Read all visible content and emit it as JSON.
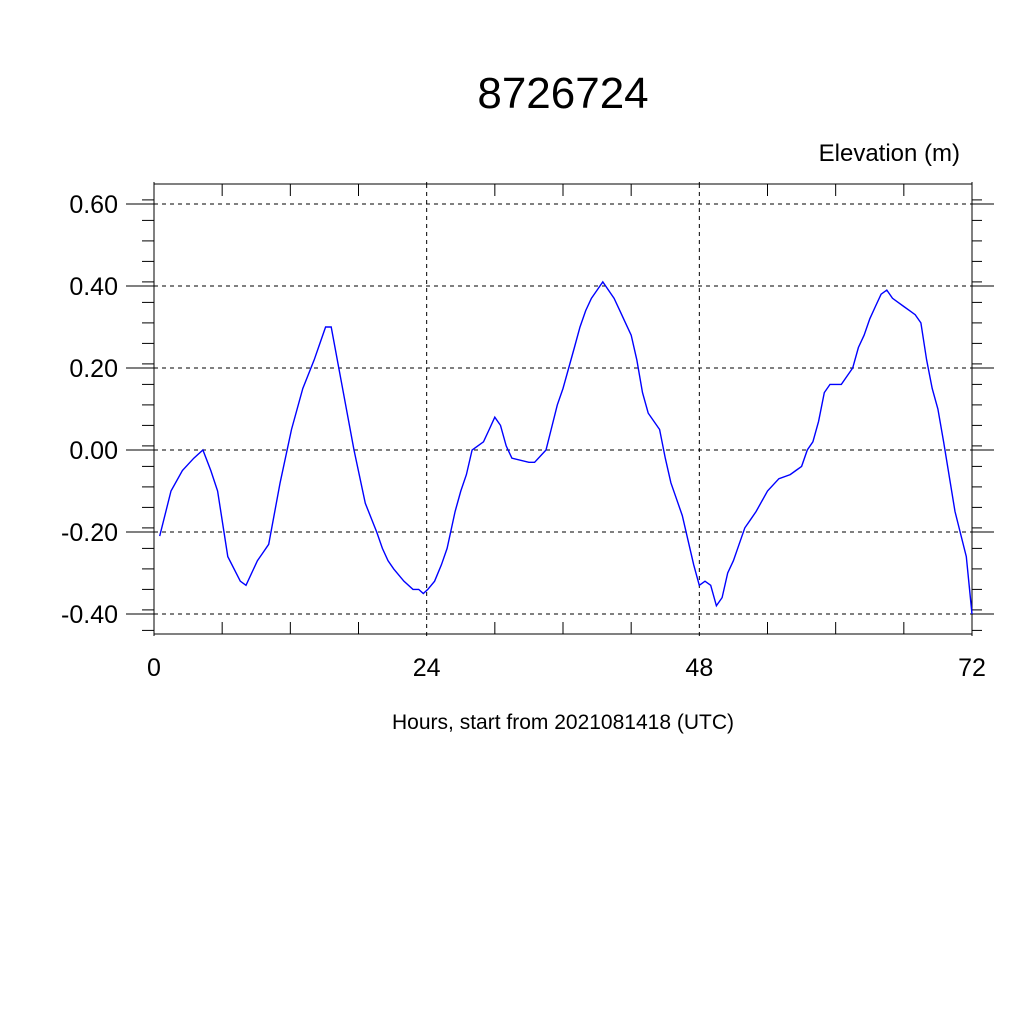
{
  "chart_data": {
    "type": "line",
    "title": "8726724",
    "ylabel": "Elevation (m)",
    "xlabel": "Hours, start from 2021081418 (UTC)",
    "xlim": [
      0,
      72
    ],
    "ylim": [
      -0.4,
      0.6
    ],
    "x_ticks": [
      0,
      24,
      48,
      72
    ],
    "x_tick_labels": [
      "0",
      "24",
      "48",
      "72"
    ],
    "y_ticks": [
      -0.4,
      -0.2,
      0.0,
      0.2,
      0.4,
      0.6
    ],
    "y_tick_labels": [
      "-0.40",
      "-0.20",
      "0.00",
      "0.20",
      "0.40",
      "0.60"
    ],
    "grid": true,
    "series": [
      {
        "color": "#0000ff",
        "x": [
          0.5,
          1.5,
          2.5,
          3.5,
          4.3,
          5.0,
          5.6,
          6.5,
          7.6,
          8.1,
          9.1,
          9.6,
          10.1,
          11.1,
          12.1,
          13.1,
          14.1,
          14.6,
          15.1,
          15.6,
          16.6,
          17.6,
          18.6,
          19.6,
          20.1,
          20.6,
          21.1,
          22.0,
          22.8,
          23.3,
          23.7,
          24.1,
          24.7,
          25.3,
          25.8,
          26.5,
          27.0,
          27.5,
          28.0,
          28.5,
          29.0,
          29.5,
          30.0,
          30.5,
          31.0,
          31.5,
          33.0,
          33.5,
          34.5,
          35.5,
          36.0,
          36.5,
          37.0,
          37.5,
          38.0,
          38.5,
          39.0,
          39.5,
          40.5,
          41.0,
          41.5,
          42.0,
          42.5,
          43.0,
          43.5,
          44.5,
          45.0,
          45.5,
          46.0,
          46.5,
          47.0,
          47.5,
          48.0,
          48.5,
          49.0,
          49.5,
          50.0,
          50.5,
          51.0,
          51.5,
          52.0,
          52.5,
          53.0,
          54.0,
          55.0,
          56.0,
          56.5,
          57.0,
          57.5,
          58.0,
          58.5,
          59.0,
          59.5,
          60.5,
          61.5,
          62.0,
          62.5,
          63.0,
          63.5,
          64.0,
          64.5,
          65.0,
          65.5,
          66.0,
          66.5,
          67.0,
          67.5,
          68.0,
          68.5,
          69.0,
          69.5,
          70.5,
          71.5,
          72.0
        ],
        "values": [
          -0.21,
          -0.1,
          -0.05,
          -0.02,
          0.0,
          -0.05,
          -0.1,
          -0.26,
          -0.32,
          -0.33,
          -0.27,
          -0.25,
          -0.23,
          -0.08,
          0.05,
          0.15,
          0.22,
          0.26,
          0.3,
          0.3,
          0.15,
          -0.0,
          -0.13,
          -0.2,
          -0.24,
          -0.27,
          -0.29,
          -0.32,
          -0.34,
          -0.34,
          -0.35,
          -0.34,
          -0.32,
          -0.28,
          -0.24,
          -0.15,
          -0.1,
          -0.06,
          0.0,
          0.01,
          0.02,
          0.05,
          0.08,
          0.06,
          0.01,
          -0.02,
          -0.03,
          -0.03,
          0.0,
          0.11,
          0.15,
          0.2,
          0.25,
          0.3,
          0.34,
          0.37,
          0.39,
          0.41,
          0.37,
          0.34,
          0.31,
          0.28,
          0.22,
          0.14,
          0.09,
          0.05,
          -0.02,
          -0.08,
          -0.12,
          -0.16,
          -0.22,
          -0.28,
          -0.33,
          -0.32,
          -0.33,
          -0.38,
          -0.36,
          -0.3,
          -0.27,
          -0.23,
          -0.19,
          -0.17,
          -0.15,
          -0.1,
          -0.07,
          -0.06,
          -0.05,
          -0.04,
          0.0,
          0.02,
          0.07,
          0.14,
          0.16,
          0.16,
          0.2,
          0.25,
          0.28,
          0.32,
          0.35,
          0.38,
          0.39,
          0.37,
          0.36,
          0.35,
          0.34,
          0.33,
          0.31,
          0.22,
          0.15,
          0.1,
          0.02,
          -0.15,
          -0.26,
          -0.4
        ]
      }
    ]
  }
}
